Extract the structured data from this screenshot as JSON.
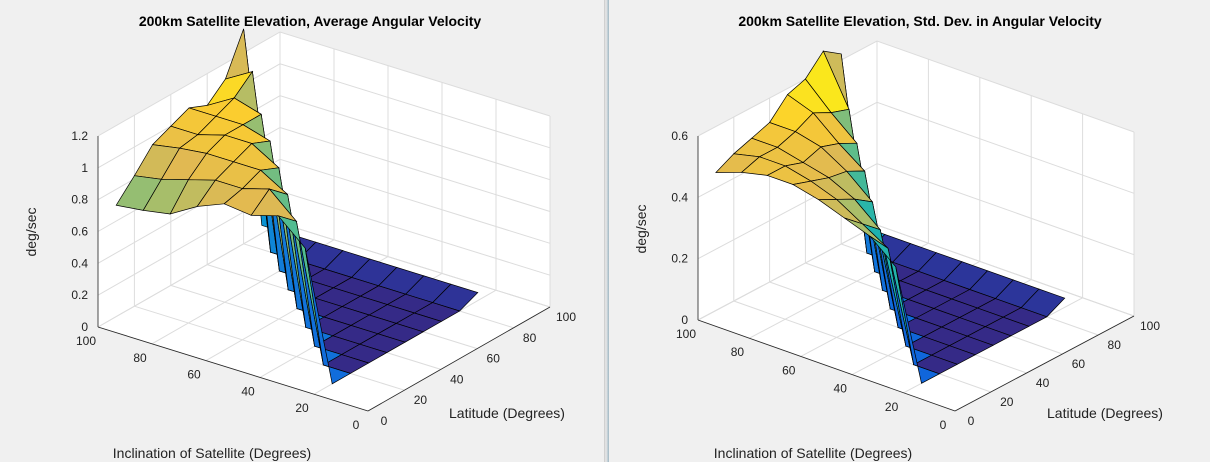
{
  "chart_data": [
    {
      "type": "surface",
      "title": "200km Satellite Elevation, Average Angular Velocity",
      "xlabel": "Inclination of Satellite (Degrees)",
      "ylabel": "Latitude (Degrees)",
      "zlabel": "deg/sec",
      "xticks": [
        "100",
        "80",
        "60",
        "40",
        "20",
        "0"
      ],
      "yticks": [
        "0",
        "20",
        "40",
        "60",
        "80",
        "100"
      ],
      "zticks": [
        "0",
        "0.2",
        "0.4",
        "0.6",
        "0.8",
        "1",
        "1.2"
      ],
      "xlim": [
        0,
        100
      ],
      "ylim": [
        0,
        100
      ],
      "zlim": [
        0,
        1.2
      ],
      "grid": true,
      "colormap": "parula",
      "x": [
        20,
        30,
        40,
        50,
        60,
        70,
        80,
        90,
        100
      ],
      "y": [
        10,
        20,
        30,
        40,
        50,
        60,
        70,
        80,
        90
      ],
      "z": [
        [
          0.0,
          0.8,
          0.95,
          0.9,
          0.92,
          0.85,
          0.75,
          0.72,
          0.7
        ],
        [
          0.0,
          0.0,
          0.85,
          1.0,
          0.95,
          0.95,
          0.9,
          0.85,
          0.82
        ],
        [
          0.0,
          0.0,
          0.0,
          0.9,
          1.0,
          1.0,
          1.0,
          0.98,
          0.95
        ],
        [
          0.0,
          0.0,
          0.0,
          0.0,
          0.95,
          1.05,
          1.05,
          1.0,
          1.0
        ],
        [
          0.0,
          0.0,
          0.0,
          0.0,
          0.0,
          1.0,
          1.05,
          1.05,
          1.05
        ],
        [
          0.0,
          0.0,
          0.0,
          0.0,
          0.0,
          0.0,
          1.05,
          1.1,
          1.0
        ],
        [
          0.0,
          0.0,
          0.0,
          0.0,
          0.0,
          0.0,
          0.0,
          1.2,
          1.1
        ],
        [
          0.0,
          0.0,
          0.0,
          0.0,
          0.0,
          0.0,
          0.0,
          0.0,
          1.35
        ],
        [
          0.05,
          0.05,
          0.05,
          0.05,
          0.05,
          0.05,
          0.05,
          0.05,
          0.05
        ]
      ]
    },
    {
      "type": "surface",
      "title": "200km Satellite Elevation, Std. Dev. in Angular Velocity",
      "xlabel": "Inclination of Satellite (Degrees)",
      "ylabel": "Latitude (Degrees)",
      "zlabel": "deg/sec",
      "xticks": [
        "100",
        "80",
        "60",
        "40",
        "20",
        "0"
      ],
      "yticks": [
        "0",
        "20",
        "40",
        "60",
        "80",
        "100"
      ],
      "zticks": [
        "0",
        "0.2",
        "0.4",
        "0.6"
      ],
      "xlim": [
        0,
        100
      ],
      "ylim": [
        0,
        100
      ],
      "zlim": [
        0,
        0.6
      ],
      "grid": true,
      "colormap": "parula",
      "x": [
        20,
        30,
        40,
        50,
        60,
        70,
        80,
        90,
        100
      ],
      "y": [
        10,
        20,
        30,
        40,
        50,
        60,
        70,
        80,
        90
      ],
      "z": [
        [
          0.0,
          0.35,
          0.42,
          0.45,
          0.48,
          0.5,
          0.5,
          0.48,
          0.45
        ],
        [
          0.0,
          0.0,
          0.35,
          0.4,
          0.45,
          0.48,
          0.5,
          0.5,
          0.48
        ],
        [
          0.0,
          0.0,
          0.0,
          0.35,
          0.42,
          0.46,
          0.48,
          0.5,
          0.5
        ],
        [
          0.0,
          0.0,
          0.0,
          0.0,
          0.38,
          0.45,
          0.5,
          0.52,
          0.52
        ],
        [
          0.0,
          0.0,
          0.0,
          0.0,
          0.0,
          0.42,
          0.48,
          0.55,
          0.58
        ],
        [
          0.0,
          0.0,
          0.0,
          0.0,
          0.0,
          0.0,
          0.45,
          0.52,
          0.6
        ],
        [
          0.0,
          0.0,
          0.0,
          0.0,
          0.0,
          0.0,
          0.0,
          0.5,
          0.66
        ],
        [
          0.0,
          0.0,
          0.0,
          0.0,
          0.0,
          0.0,
          0.0,
          0.0,
          0.62
        ],
        [
          0.03,
          0.03,
          0.03,
          0.03,
          0.03,
          0.03,
          0.03,
          0.03,
          0.03
        ]
      ]
    }
  ]
}
